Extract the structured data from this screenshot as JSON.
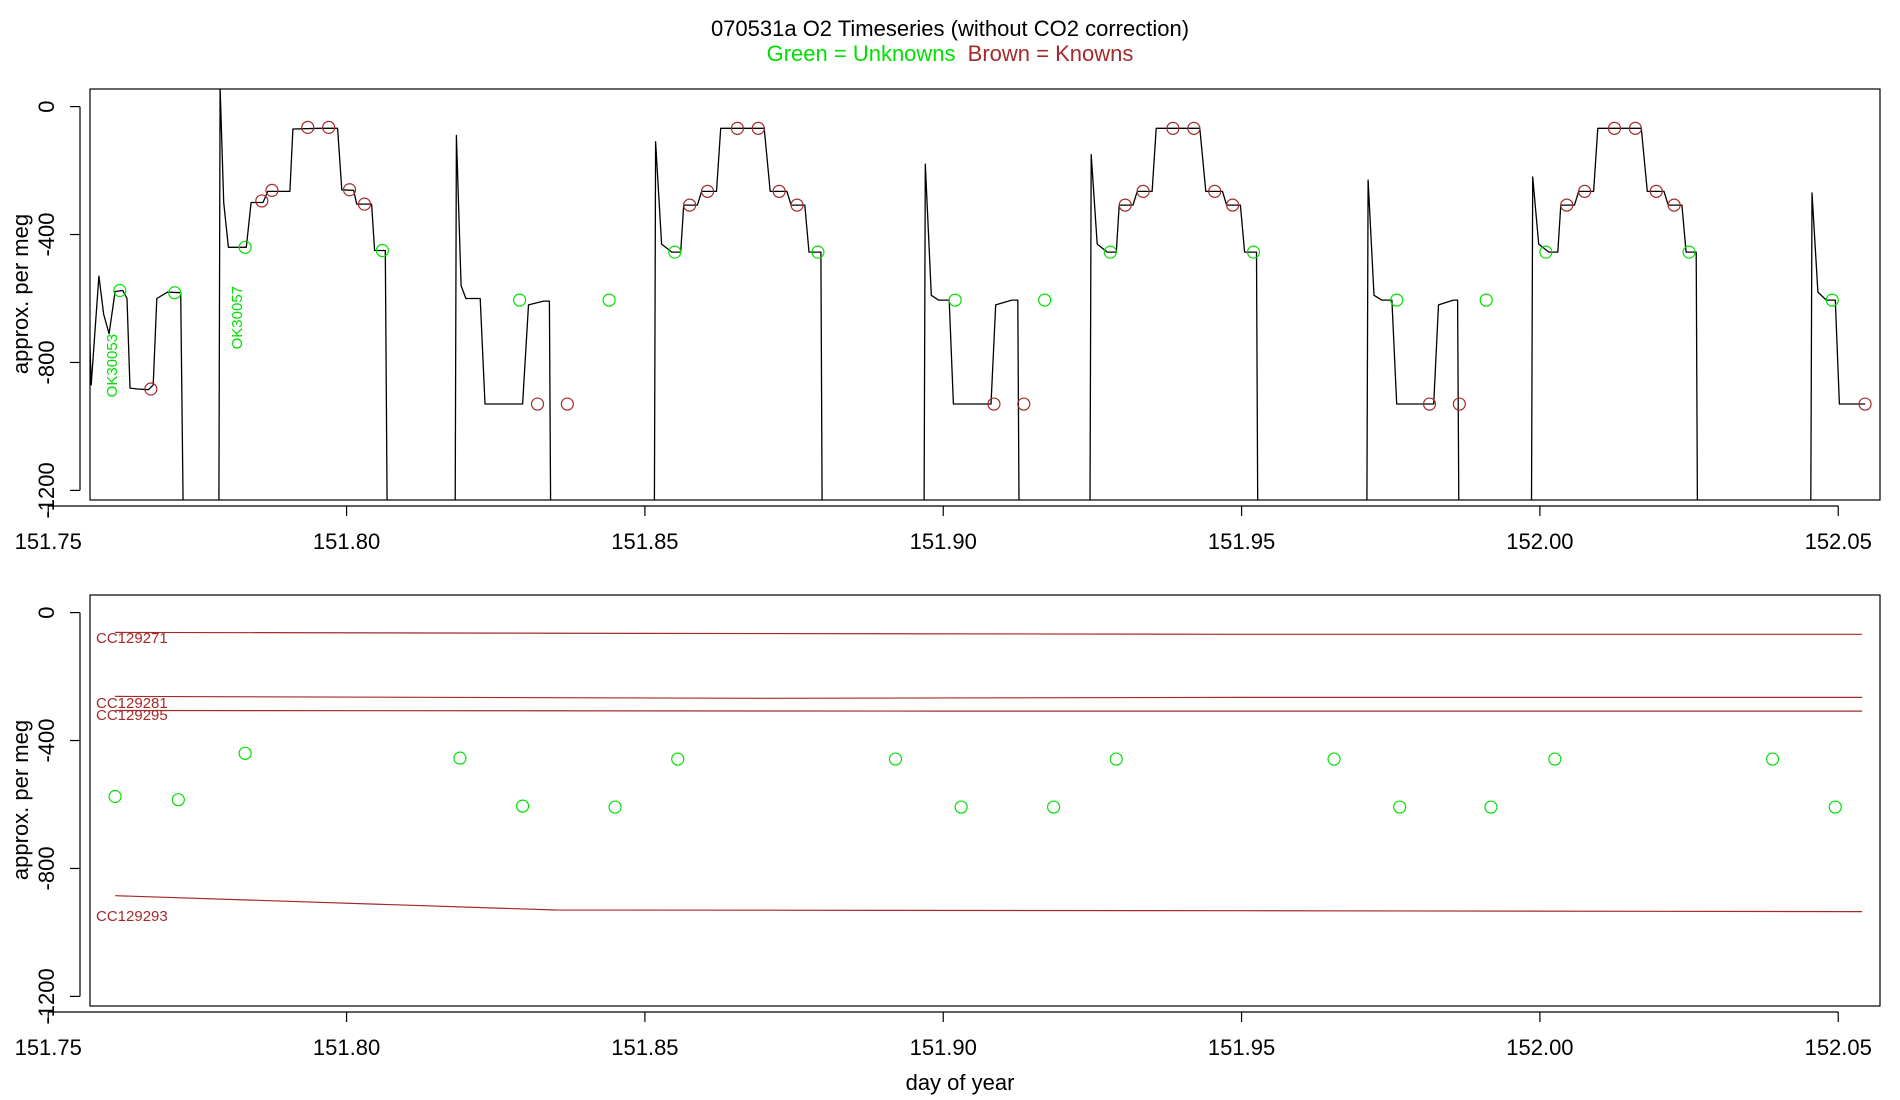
{
  "title": "070531a   O2 Timeseries (without CO2 correction)",
  "legend": {
    "unknowns": "Green = Unknowns",
    "knowns": "Brown = Knowns",
    "unknowns_color": "#00e000",
    "knowns_color": "#a52a2a"
  },
  "chart_data": [
    {
      "type": "line",
      "ylabel": "approx. per meg",
      "xlabel": "",
      "xlim": [
        151.757,
        152.057
      ],
      "ylim": [
        -1230,
        55
      ],
      "x_ticks": [
        "151.75",
        "151.80",
        "151.85",
        "151.90",
        "151.95",
        "152.00",
        "152.05"
      ],
      "x_tick_values": [
        151.75,
        151.8,
        151.85,
        151.9,
        151.95,
        152.0,
        152.05
      ],
      "y_ticks": [
        "0",
        "-400",
        "-800",
        "-1200"
      ],
      "y_tick_values": [
        0,
        -400,
        -800,
        -1200
      ],
      "line_color": "#000000",
      "annotations": [
        {
          "text": "OK30053",
          "x": 151.7615,
          "y": -810
        },
        {
          "text": "OK30057",
          "x": 151.7825,
          "y": -660
        }
      ],
      "segments": [
        [
          [
            151.7568,
            -630
          ],
          [
            151.7572,
            -870
          ],
          [
            151.7578,
            -710
          ],
          [
            151.7585,
            -530
          ],
          [
            151.7593,
            -650
          ],
          [
            151.7602,
            -710
          ],
          [
            151.7612,
            -578
          ],
          [
            151.7625,
            -575
          ],
          [
            151.7632,
            -600
          ],
          [
            151.7637,
            -880
          ],
          [
            151.765,
            -883
          ],
          [
            151.7668,
            -885
          ],
          [
            151.7676,
            -870
          ],
          [
            151.7682,
            -600
          ],
          [
            151.77,
            -580
          ],
          [
            151.7722,
            -582
          ],
          [
            151.7726,
            -1240
          ]
        ],
        [
          [
            151.7786,
            -1240
          ],
          [
            151.7788,
            60
          ],
          [
            151.7794,
            -300
          ],
          [
            151.7802,
            -440
          ],
          [
            151.7822,
            -440
          ],
          [
            151.7832,
            -440
          ],
          [
            151.784,
            -300
          ],
          [
            151.786,
            -300
          ],
          [
            151.7868,
            -265
          ],
          [
            151.7905,
            -265
          ],
          [
            151.791,
            -70
          ],
          [
            151.7955,
            -68
          ],
          [
            151.7985,
            -68
          ],
          [
            151.7992,
            -260
          ],
          [
            151.8012,
            -262
          ],
          [
            151.8017,
            -305
          ],
          [
            151.8042,
            -305
          ],
          [
            151.8047,
            -450
          ],
          [
            151.8065,
            -450
          ],
          [
            151.8068,
            -1240
          ]
        ],
        [
          [
            151.8182,
            -1240
          ],
          [
            151.8184,
            -90
          ],
          [
            151.8192,
            -560
          ],
          [
            151.82,
            -600
          ],
          [
            151.8224,
            -600
          ],
          [
            151.8232,
            -930
          ],
          [
            151.8295,
            -930
          ],
          [
            151.8305,
            -620
          ],
          [
            151.833,
            -608
          ],
          [
            151.834,
            -608
          ],
          [
            151.8342,
            -1240
          ]
        ],
        [
          [
            151.8516,
            -1240
          ],
          [
            151.8518,
            -110
          ],
          [
            151.8528,
            -430
          ],
          [
            151.8545,
            -455
          ],
          [
            151.856,
            -455
          ],
          [
            151.8565,
            -308
          ],
          [
            151.8588,
            -308
          ],
          [
            151.8595,
            -265
          ],
          [
            151.862,
            -265
          ],
          [
            151.8627,
            -68
          ],
          [
            151.87,
            -68
          ],
          [
            151.871,
            -265
          ],
          [
            151.8738,
            -265
          ],
          [
            151.8745,
            -308
          ],
          [
            151.8768,
            -308
          ],
          [
            151.8775,
            -455
          ],
          [
            151.8795,
            -455
          ],
          [
            151.8797,
            -1240
          ]
        ],
        [
          [
            151.8968,
            -1240
          ],
          [
            151.897,
            -180
          ],
          [
            151.898,
            -590
          ],
          [
            151.8992,
            -605
          ],
          [
            151.901,
            -605
          ],
          [
            151.9017,
            -930
          ],
          [
            151.908,
            -930
          ],
          [
            151.9088,
            -620
          ],
          [
            151.9115,
            -605
          ],
          [
            151.9125,
            -605
          ],
          [
            151.9127,
            -1240
          ]
        ],
        [
          [
            151.9246,
            -1240
          ],
          [
            151.9248,
            -150
          ],
          [
            151.9258,
            -430
          ],
          [
            151.9275,
            -455
          ],
          [
            151.929,
            -455
          ],
          [
            151.9295,
            -308
          ],
          [
            151.9318,
            -308
          ],
          [
            151.9325,
            -265
          ],
          [
            151.935,
            -265
          ],
          [
            151.9357,
            -68
          ],
          [
            151.943,
            -68
          ],
          [
            151.944,
            -265
          ],
          [
            151.9468,
            -265
          ],
          [
            151.9475,
            -308
          ],
          [
            151.9498,
            -308
          ],
          [
            151.9505,
            -455
          ],
          [
            151.9525,
            -455
          ],
          [
            151.9527,
            -1240
          ]
        ],
        [
          [
            151.971,
            -1240
          ],
          [
            151.9712,
            -230
          ],
          [
            151.9722,
            -590
          ],
          [
            151.9735,
            -605
          ],
          [
            151.9752,
            -605
          ],
          [
            151.976,
            -930
          ],
          [
            151.9822,
            -930
          ],
          [
            151.983,
            -620
          ],
          [
            151.9855,
            -605
          ],
          [
            151.9862,
            -605
          ],
          [
            151.9864,
            -1240
          ]
        ],
        [
          [
            151.9986,
            -1240
          ],
          [
            151.9988,
            -220
          ],
          [
            151.9998,
            -430
          ],
          [
            152.0015,
            -455
          ],
          [
            152.003,
            -455
          ],
          [
            152.0035,
            -308
          ],
          [
            152.0058,
            -308
          ],
          [
            152.0065,
            -265
          ],
          [
            152.009,
            -265
          ],
          [
            152.0097,
            -68
          ],
          [
            152.017,
            -68
          ],
          [
            152.018,
            -265
          ],
          [
            152.0208,
            -265
          ],
          [
            152.0215,
            -308
          ],
          [
            152.0238,
            -308
          ],
          [
            152.0245,
            -455
          ],
          [
            152.0262,
            -455
          ],
          [
            152.0264,
            -1240
          ]
        ],
        [
          [
            152.0454,
            -1240
          ],
          [
            152.0456,
            -270
          ],
          [
            152.0466,
            -580
          ],
          [
            152.048,
            -605
          ],
          [
            152.0495,
            -605
          ],
          [
            152.0502,
            -930
          ],
          [
            152.0545,
            -930
          ]
        ]
      ],
      "knowns_points": [
        [
          151.7672,
          -883
        ],
        [
          151.7858,
          -295
        ],
        [
          151.7875,
          -262
        ],
        [
          151.7935,
          -65
        ],
        [
          151.797,
          -65
        ],
        [
          151.8005,
          -260
        ],
        [
          151.803,
          -305
        ],
        [
          151.832,
          -930
        ],
        [
          151.837,
          -930
        ],
        [
          151.8575,
          -308
        ],
        [
          151.8605,
          -265
        ],
        [
          151.8655,
          -68
        ],
        [
          151.869,
          -68
        ],
        [
          151.8725,
          -265
        ],
        [
          151.8755,
          -308
        ],
        [
          151.9085,
          -930
        ],
        [
          151.9135,
          -930
        ],
        [
          151.9305,
          -308
        ],
        [
          151.9335,
          -265
        ],
        [
          151.9385,
          -68
        ],
        [
          151.942,
          -68
        ],
        [
          151.9455,
          -265
        ],
        [
          151.9485,
          -308
        ],
        [
          151.9815,
          -930
        ],
        [
          151.9865,
          -930
        ],
        [
          152.0045,
          -308
        ],
        [
          152.0075,
          -265
        ],
        [
          152.0125,
          -68
        ],
        [
          152.016,
          -68
        ],
        [
          152.0195,
          -265
        ],
        [
          152.0225,
          -308
        ],
        [
          152.0545,
          -930
        ]
      ],
      "unknowns_points": [
        [
          151.762,
          -575
        ],
        [
          151.7712,
          -582
        ],
        [
          151.783,
          -440
        ],
        [
          151.806,
          -450
        ],
        [
          151.829,
          -605
        ],
        [
          151.844,
          -605
        ],
        [
          151.855,
          -455
        ],
        [
          151.879,
          -455
        ],
        [
          151.902,
          -605
        ],
        [
          151.917,
          -605
        ],
        [
          151.928,
          -455
        ],
        [
          151.952,
          -455
        ],
        [
          151.976,
          -605
        ],
        [
          151.991,
          -605
        ],
        [
          152.001,
          -455
        ],
        [
          152.025,
          -455
        ],
        [
          152.049,
          -605
        ]
      ]
    },
    {
      "type": "scatter",
      "ylabel": "approx. per meg",
      "xlabel": "day of year",
      "xlim": [
        151.757,
        152.057
      ],
      "ylim": [
        -1230,
        55
      ],
      "x_ticks": [
        "151.75",
        "151.80",
        "151.85",
        "151.90",
        "151.95",
        "152.00",
        "152.05"
      ],
      "x_tick_values": [
        151.75,
        151.8,
        151.85,
        151.9,
        151.95,
        152.0,
        152.05
      ],
      "y_ticks": [
        "0",
        "-400",
        "-800",
        "-1200"
      ],
      "y_tick_values": [
        0,
        -400,
        -800,
        -1200
      ],
      "standards": [
        {
          "name": "CC129271",
          "label_y": -80,
          "points": [
            [
              151.7612,
              -62
            ],
            [
              151.85,
              -65
            ],
            [
              151.95,
              -68
            ],
            [
              152.054,
              -68
            ]
          ]
        },
        {
          "name": "CC129281",
          "label_y": -282,
          "points": [
            [
              151.7612,
              -262
            ],
            [
              151.87,
              -268
            ],
            [
              151.95,
              -265
            ],
            [
              152.054,
              -265
            ]
          ]
        },
        {
          "name": "CC129295",
          "label_y": -320,
          "points": [
            [
              151.7612,
              -306
            ],
            [
              151.9,
              -308
            ],
            [
              152.054,
              -308
            ]
          ]
        },
        {
          "name": "CC129293",
          "label_y": -948,
          "points": [
            [
              151.7612,
              -885
            ],
            [
              151.835,
              -930
            ],
            [
              151.95,
              -932
            ],
            [
              152.054,
              -935
            ]
          ]
        }
      ],
      "unknowns": [
        [
          151.7612,
          -575
        ],
        [
          151.7718,
          -585
        ],
        [
          151.783,
          -440
        ],
        [
          151.819,
          -455
        ],
        [
          151.8295,
          -605
        ],
        [
          151.845,
          -608
        ],
        [
          151.8555,
          -458
        ],
        [
          151.892,
          -458
        ],
        [
          151.903,
          -608
        ],
        [
          151.9185,
          -608
        ],
        [
          151.929,
          -458
        ],
        [
          151.9655,
          -458
        ],
        [
          151.9765,
          -608
        ],
        [
          151.9918,
          -608
        ],
        [
          152.0025,
          -458
        ],
        [
          152.039,
          -458
        ],
        [
          152.0495,
          -608
        ]
      ]
    }
  ]
}
